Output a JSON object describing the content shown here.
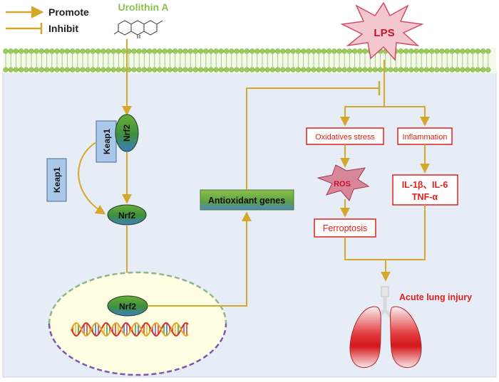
{
  "legend": {
    "promote": "Promote",
    "inhibit": "Inhibit"
  },
  "compound": {
    "name": "Urolithin A"
  },
  "stimulus": {
    "name": "LPS"
  },
  "pathway": {
    "keap1_bound": "Keap1",
    "nrf2_bound": "Nrf2",
    "keap1_free": "Keap1",
    "nrf2_free": "Nrf2",
    "nrf2_nucleus": "Nrf2",
    "antioxidant_genes": "Antioxidant genes"
  },
  "lps_effects": {
    "oxidative_stress": "Oxidatives stress",
    "inflammation": "Inflammation",
    "ros": "ROS",
    "cytokines_line1": "IL-1β、IL-6",
    "cytokines_line2": "TNF-α",
    "ferroptosis": "Ferroptosis"
  },
  "outcome": {
    "label": "Acute lung injury"
  },
  "colors": {
    "arrow": "#D4A82A",
    "box_red": "#E0201A",
    "membrane": "#9CCB5A",
    "cytoplasm": "#E6EDF6",
    "nucleus_fill": "#FFFDE2",
    "keap1_fill": "#A9C7E8",
    "lps_fill": "#F2C8CE"
  }
}
